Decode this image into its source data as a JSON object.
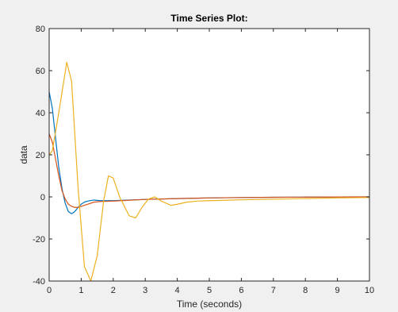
{
  "chart_data": {
    "type": "line",
    "title": "Time Series Plot:",
    "xlabel": "Time (seconds)",
    "ylabel": "data",
    "xlim": [
      0,
      10
    ],
    "ylim": [
      -40,
      80
    ],
    "xticks": [
      0,
      1,
      2,
      3,
      4,
      5,
      6,
      7,
      8,
      9,
      10
    ],
    "yticks": [
      -40,
      -20,
      0,
      20,
      40,
      60,
      80
    ],
    "grid": false,
    "legend": "none",
    "series": [
      {
        "color": "#0072BD",
        "x": [
          0,
          0.1,
          0.2,
          0.3,
          0.4,
          0.5,
          0.6,
          0.7,
          0.8,
          0.9,
          1.0,
          1.1,
          1.2,
          1.4,
          1.6,
          2.0,
          3.0,
          4.0,
          5.0,
          6.0,
          7.0,
          8.0,
          9.0,
          10.0
        ],
        "y": [
          50,
          42,
          28,
          14,
          4,
          -3,
          -7,
          -8,
          -7,
          -5,
          -3.5,
          -2.5,
          -2,
          -1.5,
          -1.8,
          -1.8,
          -1.2,
          -0.8,
          -0.5,
          -0.3,
          -0.2,
          -0.1,
          -0.05,
          0
        ]
      },
      {
        "color": "#D95319",
        "x": [
          0,
          0.1,
          0.2,
          0.3,
          0.4,
          0.5,
          0.6,
          0.7,
          0.8,
          0.9,
          1.0,
          1.2,
          1.4,
          1.6,
          2.0,
          2.5,
          3.0,
          4.0,
          5.0,
          6.0,
          7.0,
          8.0,
          9.0,
          10.0
        ],
        "y": [
          30,
          26,
          18,
          10,
          3,
          -1,
          -3.5,
          -4.5,
          -5,
          -5,
          -4.5,
          -3.5,
          -2.5,
          -2.2,
          -2,
          -1.6,
          -1.2,
          -0.8,
          -0.5,
          -0.3,
          -0.2,
          -0.1,
          -0.05,
          0
        ]
      },
      {
        "color": "#EDB120",
        "x": [
          0,
          0.1,
          0.3,
          0.55,
          0.7,
          0.9,
          1.1,
          1.3,
          1.5,
          1.7,
          1.85,
          2.0,
          2.2,
          2.5,
          2.7,
          2.9,
          3.1,
          3.3,
          3.5,
          3.8,
          4.0,
          4.3,
          4.6,
          5.0,
          5.5,
          6.0,
          7.0,
          8.0,
          9.0,
          10.0
        ],
        "y": [
          20,
          22,
          40,
          64,
          55,
          5,
          -33,
          -40,
          -28,
          -2,
          10,
          9,
          0,
          -9,
          -10,
          -5,
          -1,
          0,
          -2,
          -4,
          -3.5,
          -2.5,
          -2,
          -1.8,
          -1.6,
          -1.4,
          -1.1,
          -0.8,
          -0.5,
          -0.3
        ]
      }
    ]
  }
}
